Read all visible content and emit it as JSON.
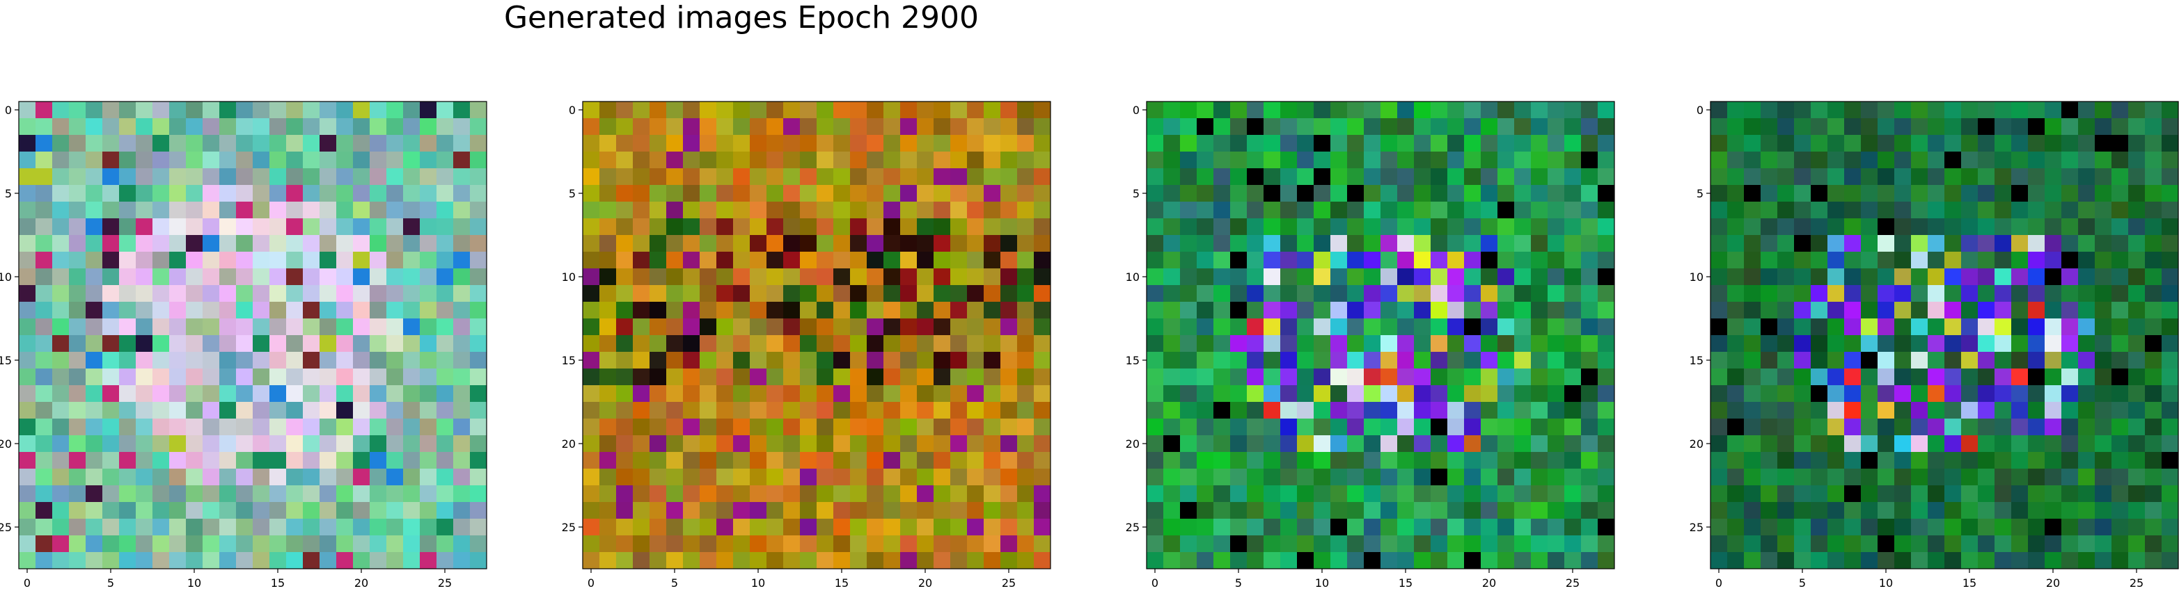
{
  "title": "Generated images Epoch 2900",
  "chart_data": [
    {
      "type": "heatmap",
      "grid_size": 28,
      "palette": "pastel",
      "xticks": [
        "0",
        "5",
        "10",
        "15",
        "20",
        "25"
      ],
      "yticks": [
        "0",
        "5",
        "10",
        "15",
        "20",
        "25"
      ],
      "xlim": [
        -0.5,
        27.5
      ],
      "ylim": [
        27.5,
        -0.5
      ],
      "grid": false
    },
    {
      "type": "heatmap",
      "grid_size": 28,
      "palette": "olive",
      "xticks": [
        "0",
        "5",
        "10",
        "15",
        "20",
        "25"
      ],
      "yticks": [
        "0",
        "5",
        "10",
        "15",
        "20",
        "25"
      ],
      "xlim": [
        -0.5,
        27.5
      ],
      "ylim": [
        27.5,
        -0.5
      ],
      "grid": false
    },
    {
      "type": "heatmap",
      "grid_size": 28,
      "palette": "green-blue",
      "xticks": [
        "0",
        "5",
        "10",
        "15",
        "20",
        "25"
      ],
      "yticks": [
        "0",
        "5",
        "10",
        "15",
        "20",
        "25"
      ],
      "xlim": [
        -0.5,
        27.5
      ],
      "ylim": [
        27.5,
        -0.5
      ],
      "grid": false
    },
    {
      "type": "heatmap",
      "grid_size": 28,
      "palette": "dark-green-blue",
      "xticks": [
        "0",
        "5",
        "10",
        "15",
        "20",
        "25"
      ],
      "yticks": [
        "0",
        "5",
        "10",
        "15",
        "20",
        "25"
      ],
      "xlim": [
        -0.5,
        27.5
      ],
      "ylim": [
        27.5,
        -0.5
      ],
      "grid": false
    }
  ]
}
